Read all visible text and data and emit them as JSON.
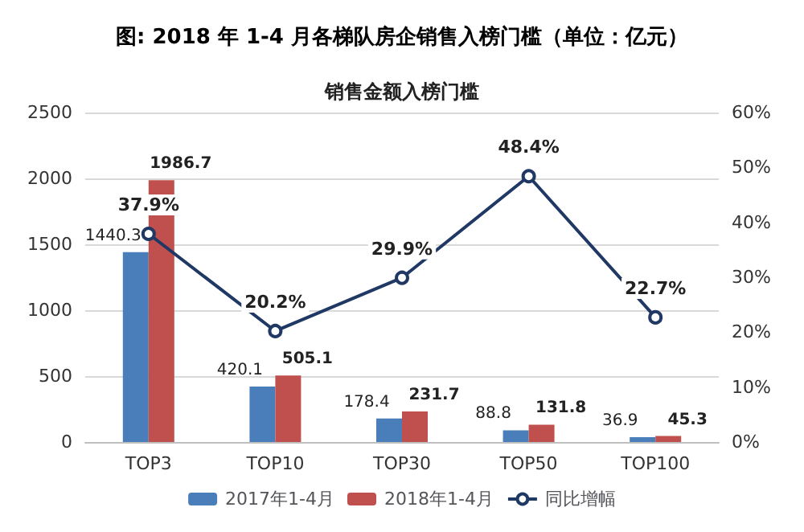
{
  "chart_data": {
    "type": "bar",
    "title": "图: 2018 年 1-4 月各梯队房企销售入榜门槛（单位：亿元）",
    "subtitle": "销售金额入榜门槛",
    "categories": [
      "TOP3",
      "TOP10",
      "TOP30",
      "TOP50",
      "TOP100"
    ],
    "series": [
      {
        "name": "2017年1-4月",
        "color": "#4a7ebb",
        "values": [
          1440.3,
          420.1,
          178.4,
          88.8,
          36.9
        ],
        "value_labels": [
          "1440.3",
          "420.1",
          "178.4",
          "88.8",
          "36.9"
        ]
      },
      {
        "name": "2018年1-4月",
        "color": "#c0504d",
        "values": [
          1986.7,
          505.1,
          231.7,
          131.8,
          45.3
        ],
        "value_labels": [
          "1986.7",
          "505.1",
          "231.7",
          "131.8",
          "45.3"
        ]
      },
      {
        "name": "同比增幅",
        "type": "line",
        "axis": "y2",
        "color": "#1f3864",
        "marker": "circle",
        "values": [
          37.9,
          20.2,
          29.9,
          48.4,
          22.7
        ],
        "value_labels": [
          "37.9%",
          "20.2%",
          "29.9%",
          "48.4%",
          "22.7%"
        ]
      }
    ],
    "ylim": [
      0,
      2500
    ],
    "yticks": [
      0,
      500,
      1000,
      1500,
      2000,
      2500
    ],
    "y2lim": [
      0,
      60
    ],
    "y2ticks": [
      {
        "value": 0,
        "label": "0%"
      },
      {
        "value": 10,
        "label": "10%"
      },
      {
        "value": 20,
        "label": "20%"
      },
      {
        "value": 30,
        "label": "30%"
      },
      {
        "value": 40,
        "label": "40%"
      },
      {
        "value": 50,
        "label": "50%"
      },
      {
        "value": 60,
        "label": "60%"
      }
    ],
    "grid": "y",
    "legend": "bottom"
  }
}
